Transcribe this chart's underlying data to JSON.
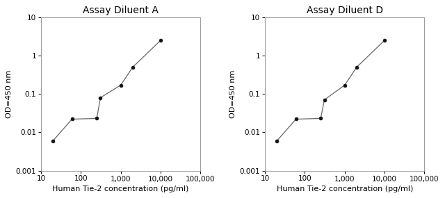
{
  "left_title": "Assay Diluent A",
  "right_title": "Assay Diluent D",
  "xlabel": "Human Tie-2 concentration (pg/ml)",
  "ylabel": "OD=450 nm",
  "left_data_x": [
    20,
    60,
    250,
    310,
    1000,
    2000,
    10000
  ],
  "left_data_y": [
    0.006,
    0.022,
    0.023,
    0.08,
    0.17,
    0.5,
    2.5
  ],
  "right_data_x": [
    20,
    60,
    250,
    310,
    1000,
    2000,
    10000
  ],
  "right_data_y": [
    0.006,
    0.022,
    0.023,
    0.07,
    0.17,
    0.5,
    2.5
  ],
  "xlim": [
    10,
    100000
  ],
  "ylim": [
    0.001,
    10
  ],
  "xticks": [
    10,
    100,
    1000,
    10000,
    100000
  ],
  "xtick_labels": [
    "10",
    "100",
    "1,000",
    "10,000",
    "100,000"
  ],
  "yticks": [
    0.001,
    0.01,
    0.1,
    1,
    10
  ],
  "ytick_labels": [
    "0.001",
    "0.01",
    "0.1",
    "1",
    "10"
  ],
  "line_color": "#666666",
  "marker_color": "#111111",
  "bg_color": "#ffffff",
  "title_fontsize": 10,
  "label_fontsize": 8,
  "tick_fontsize": 7.5,
  "marker_size": 3.5,
  "line_width": 0.9
}
